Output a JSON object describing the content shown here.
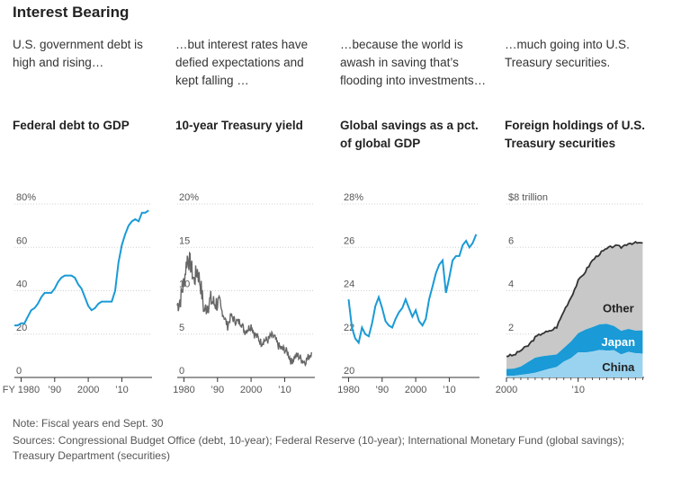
{
  "header": {
    "title": "Interest Bearing"
  },
  "colors": {
    "blue": "#1a9ad6",
    "gray": "#666666",
    "area_gray": "#c8c8c8",
    "dark_line": "#333333",
    "japan": "#1a9ad6",
    "china": "#9ad3f0"
  },
  "panels": [
    {
      "lede": "U.S. government debt is high and rising…",
      "title": "Federal debt to GDP"
    },
    {
      "lede": "…but interest rates have defied expectations and kept falling …",
      "title": "10-year Treasury yield"
    },
    {
      "lede": "…because the world is awash in saving that’s flooding into investments…",
      "title": "Global savings as a pct. of global GDP"
    },
    {
      "lede": "…much going into U.S. Treasury securities.",
      "title": "Foreign holdings of U.S. Treasury securities"
    }
  ],
  "chart_data": [
    {
      "type": "line",
      "title": "Federal debt to GDP",
      "unit": "%",
      "ylim": [
        0,
        80
      ],
      "yticks": [
        "80%",
        "60",
        "40",
        "20",
        "0"
      ],
      "xlim": [
        1978,
        2019
      ],
      "xticks": [
        "FY 1980",
        "’90",
        "2000",
        "’10"
      ],
      "x": [
        1978,
        1979,
        1980,
        1981,
        1982,
        1983,
        1984,
        1985,
        1986,
        1987,
        1988,
        1989,
        1990,
        1991,
        1992,
        1993,
        1994,
        1995,
        1996,
        1997,
        1998,
        1999,
        2000,
        2001,
        2002,
        2003,
        2004,
        2005,
        2006,
        2007,
        2008,
        2009,
        2010,
        2011,
        2012,
        2013,
        2014,
        2015,
        2016,
        2017,
        2018
      ],
      "values": [
        24,
        24,
        25,
        25,
        28,
        31,
        32,
        34,
        37,
        39,
        39,
        39,
        41,
        44,
        46,
        47,
        47,
        47,
        46,
        43,
        41,
        37,
        33,
        31,
        32,
        34,
        35,
        35,
        35,
        35,
        40,
        53,
        61,
        66,
        70,
        72,
        73,
        72,
        76,
        76,
        77
      ]
    },
    {
      "type": "line",
      "title": "10-year Treasury yield",
      "unit": "%",
      "ylim": [
        0,
        20
      ],
      "yticks": [
        "20%",
        "15",
        "10",
        "5",
        "0"
      ],
      "xlim": [
        1978,
        2019
      ],
      "xticks": [
        "1980",
        "’90",
        "2000",
        "’10"
      ],
      "x": [
        1978,
        1979,
        1980,
        1981,
        1982,
        1983,
        1984,
        1985,
        1986,
        1987,
        1988,
        1989,
        1990,
        1991,
        1992,
        1993,
        1994,
        1995,
        1996,
        1997,
        1998,
        1999,
        2000,
        2001,
        2002,
        2003,
        2004,
        2005,
        2006,
        2007,
        2008,
        2009,
        2010,
        2011,
        2012,
        2013,
        2014,
        2015,
        2016,
        2017,
        2018
      ],
      "values": [
        8.3,
        9.1,
        11.0,
        13.9,
        13.0,
        11.1,
        12.4,
        10.6,
        7.7,
        8.4,
        8.9,
        8.5,
        8.6,
        7.9,
        7.0,
        5.9,
        7.1,
        6.6,
        6.4,
        6.4,
        5.3,
        5.6,
        6.0,
        5.0,
        4.6,
        4.0,
        4.3,
        4.3,
        4.8,
        4.6,
        3.7,
        3.3,
        3.2,
        2.8,
        1.8,
        2.4,
        2.5,
        2.1,
        1.8,
        2.3,
        2.9
      ]
    },
    {
      "type": "line",
      "title": "Global savings as a pct. of global GDP",
      "unit": "%",
      "ylim": [
        20,
        28
      ],
      "yticks": [
        "28%",
        "26",
        "24",
        "22",
        "20"
      ],
      "xlim": [
        1978,
        2019
      ],
      "xticks": [
        "1980",
        "’90",
        "2000",
        "’10"
      ],
      "x": [
        1980,
        1981,
        1982,
        1983,
        1984,
        1985,
        1986,
        1987,
        1988,
        1989,
        1990,
        1991,
        1992,
        1993,
        1994,
        1995,
        1996,
        1997,
        1998,
        1999,
        2000,
        2001,
        2002,
        2003,
        2004,
        2005,
        2006,
        2007,
        2008,
        2009,
        2010,
        2011,
        2012,
        2013,
        2014,
        2015,
        2016,
        2017,
        2018
      ],
      "values": [
        23.6,
        22.3,
        21.8,
        21.6,
        22.3,
        22.0,
        21.9,
        22.5,
        23.3,
        23.7,
        23.2,
        22.6,
        22.4,
        22.3,
        22.7,
        23.0,
        23.2,
        23.6,
        23.2,
        22.8,
        23.1,
        22.6,
        22.4,
        22.7,
        23.6,
        24.2,
        24.8,
        25.2,
        25.4,
        23.9,
        24.6,
        25.4,
        25.6,
        25.6,
        26.1,
        26.3,
        26.0,
        26.2,
        26.6
      ]
    },
    {
      "type": "area",
      "title": "Foreign holdings of U.S. Treasury securities",
      "unit": "$ trillion",
      "ylim": [
        0,
        8
      ],
      "yticks": [
        "$8 trillion",
        "6",
        "4",
        "2",
        "0"
      ],
      "xlim": [
        2000,
        2019.2
      ],
      "xticks": [
        "2000",
        "’10"
      ],
      "x": [
        2000,
        2001,
        2002,
        2003,
        2004,
        2005,
        2006,
        2007,
        2008,
        2009,
        2010,
        2011,
        2012,
        2013,
        2014,
        2015,
        2016,
        2017,
        2018,
        2019
      ],
      "series": [
        {
          "name": "China",
          "values": [
            0.07,
            0.08,
            0.12,
            0.16,
            0.22,
            0.31,
            0.4,
            0.48,
            0.73,
            0.89,
            1.16,
            1.15,
            1.2,
            1.27,
            1.24,
            1.25,
            1.06,
            1.18,
            1.12,
            1.1
          ]
        },
        {
          "name": "Japan",
          "values": [
            0.32,
            0.32,
            0.38,
            0.55,
            0.69,
            0.67,
            0.62,
            0.58,
            0.63,
            0.77,
            0.88,
            1.06,
            1.12,
            1.18,
            1.23,
            1.12,
            1.09,
            1.06,
            1.04,
            1.07
          ]
        },
        {
          "name": "Other",
          "values": [
            0.61,
            0.62,
            0.75,
            0.75,
            0.93,
            1.07,
            1.1,
            1.27,
            1.7,
            2.04,
            2.4,
            2.68,
            3.08,
            3.27,
            3.46,
            3.7,
            3.86,
            3.96,
            4.04,
            4.03
          ]
        }
      ],
      "total": [
        1.0,
        1.02,
        1.25,
        1.46,
        1.84,
        2.05,
        2.12,
        2.33,
        3.06,
        3.7,
        4.44,
        4.89,
        5.4,
        5.72,
        5.93,
        6.07,
        6.01,
        6.2,
        6.2,
        6.2
      ]
    }
  ],
  "notes": {
    "note": "Note: Fiscal years end Sept. 30",
    "sources": "Sources: Congressional Budget Office (debt, 10-year); Federal Reserve (10-year); International Monetary Fund (global savings); Treasury Department (securities)"
  }
}
